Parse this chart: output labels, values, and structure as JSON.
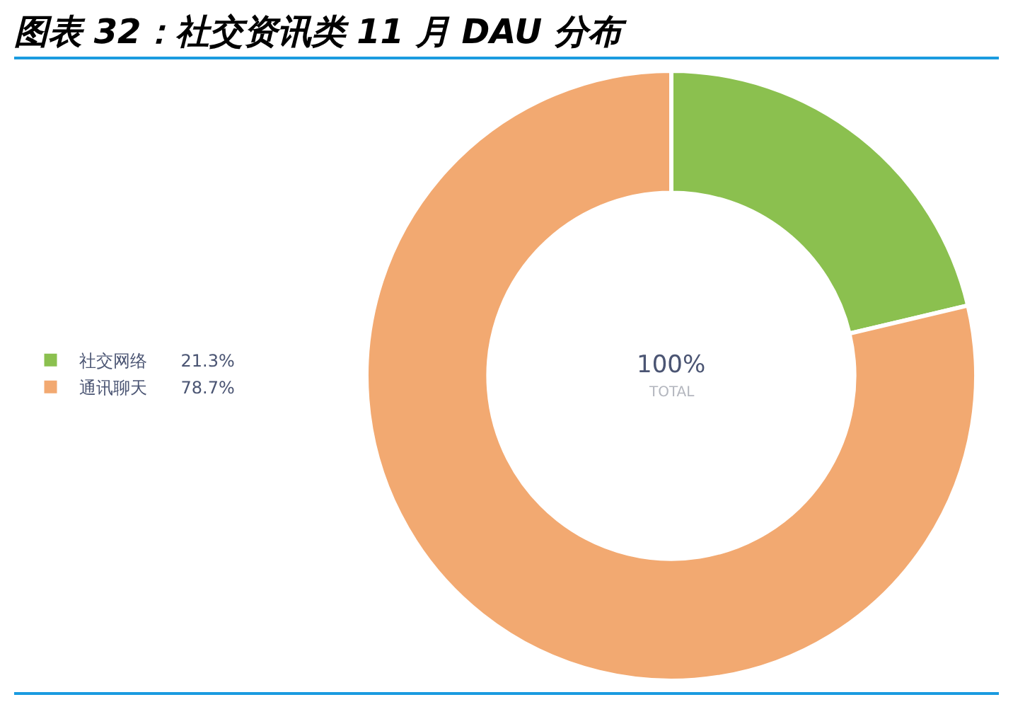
{
  "chart_data": {
    "type": "donut",
    "title": "图表 32：社交资讯类 11 月 DAU 分布",
    "categories": [
      "社交网络",
      "通讯聊天"
    ],
    "values": [
      21.3,
      78.7
    ],
    "colors": [
      "#8bc04f",
      "#f2a971"
    ],
    "value_labels": [
      "21.3%",
      "78.7%"
    ],
    "annotations": [
      "100%",
      "TOTAL"
    ],
    "legend": "left"
  }
}
